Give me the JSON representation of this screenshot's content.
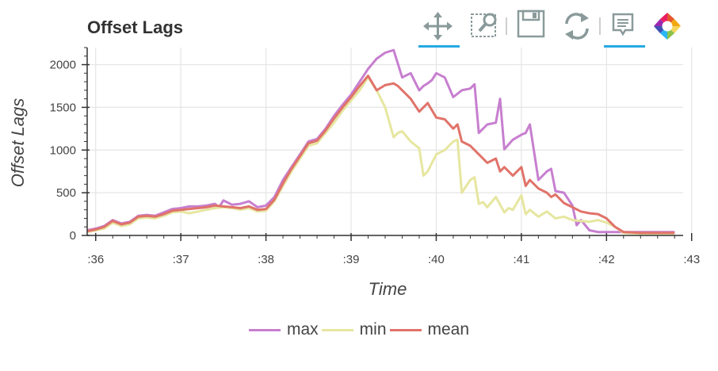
{
  "toolbar": {
    "tools": [
      {
        "name": "pan-tool",
        "icon": "move-icon",
        "active": true
      },
      {
        "name": "box-zoom-tool",
        "icon": "box-zoom-icon",
        "active": false
      },
      {
        "name": "save-tool",
        "icon": "save-icon",
        "active": false
      },
      {
        "name": "reset-tool",
        "icon": "reset-icon",
        "active": false
      },
      {
        "name": "hover-tool",
        "icon": "hover-tooltip-icon",
        "active": true
      },
      {
        "name": "bokeh-logo",
        "icon": "bokeh-logo-icon",
        "active": false
      }
    ],
    "active_color": "#26aae1"
  },
  "chart_data": {
    "type": "line",
    "title": "Offset Lags",
    "xlabel": "Time",
    "ylabel": "Offset Lags",
    "xlim": [
      35.9,
      42.9
    ],
    "ylim": [
      0,
      2200
    ],
    "x_ticks": [
      36,
      37,
      38,
      39,
      40,
      41,
      42,
      43
    ],
    "x_tick_labels": [
      ":36",
      ":37",
      ":38",
      ":39",
      ":40",
      ":41",
      ":42",
      ":43"
    ],
    "y_ticks": [
      0,
      500,
      1000,
      1500,
      2000
    ],
    "y_tick_labels": [
      "0",
      "500",
      "1000",
      "1500",
      "2000"
    ],
    "grid": true,
    "legend_position": "bottom",
    "series": [
      {
        "name": "max",
        "color": "#c77fcf",
        "x": [
          35.9,
          36.0,
          36.1,
          36.2,
          36.3,
          36.4,
          36.5,
          36.6,
          36.7,
          36.8,
          36.9,
          37.0,
          37.1,
          37.2,
          37.3,
          37.4,
          37.45,
          37.5,
          37.6,
          37.7,
          37.8,
          37.9,
          38.0,
          38.1,
          38.2,
          38.3,
          38.4,
          38.5,
          38.6,
          38.7,
          38.8,
          38.9,
          39.0,
          39.1,
          39.2,
          39.3,
          39.4,
          39.5,
          39.6,
          39.7,
          39.8,
          39.85,
          39.9,
          39.95,
          40.0,
          40.1,
          40.2,
          40.3,
          40.4,
          40.45,
          40.5,
          40.6,
          40.7,
          40.75,
          40.8,
          40.9,
          41.0,
          41.05,
          41.1,
          41.2,
          41.3,
          41.35,
          41.4,
          41.5,
          41.6,
          41.65,
          41.7,
          41.8,
          41.9,
          42.0,
          42.1,
          42.2,
          42.4,
          42.6,
          42.8
        ],
        "values": [
          60,
          80,
          110,
          180,
          140,
          160,
          230,
          240,
          230,
          270,
          310,
          320,
          340,
          340,
          350,
          370,
          330,
          410,
          360,
          370,
          400,
          330,
          350,
          450,
          650,
          800,
          950,
          1100,
          1130,
          1250,
          1400,
          1530,
          1650,
          1800,
          1950,
          2070,
          2140,
          2170,
          1850,
          1900,
          1700,
          1750,
          1780,
          1820,
          1900,
          1850,
          1620,
          1700,
          1720,
          1770,
          1200,
          1300,
          1320,
          1600,
          1010,
          1120,
          1180,
          1200,
          1300,
          650,
          750,
          780,
          520,
          500,
          350,
          120,
          180,
          60,
          40,
          40,
          40,
          40,
          40,
          40,
          40
        ]
      },
      {
        "name": "min",
        "color": "#e6e6a0",
        "x": [
          35.9,
          36.0,
          36.1,
          36.2,
          36.3,
          36.4,
          36.5,
          36.6,
          36.7,
          36.8,
          36.9,
          37.0,
          37.1,
          37.2,
          37.3,
          37.4,
          37.5,
          37.6,
          37.7,
          37.8,
          37.9,
          38.0,
          38.1,
          38.2,
          38.3,
          38.4,
          38.5,
          38.6,
          38.7,
          38.8,
          38.9,
          39.0,
          39.1,
          39.2,
          39.3,
          39.4,
          39.5,
          39.55,
          39.6,
          39.7,
          39.8,
          39.85,
          39.9,
          40.0,
          40.1,
          40.2,
          40.25,
          40.3,
          40.4,
          40.45,
          40.5,
          40.55,
          40.6,
          40.7,
          40.8,
          40.85,
          40.9,
          41.0,
          41.05,
          41.1,
          41.2,
          41.3,
          41.4,
          41.5,
          41.6,
          41.7,
          41.8,
          41.9,
          42.0,
          42.1,
          42.2,
          42.4,
          42.6,
          42.8
        ],
        "values": [
          40,
          60,
          80,
          150,
          110,
          130,
          200,
          210,
          200,
          230,
          270,
          280,
          260,
          280,
          300,
          320,
          330,
          320,
          300,
          320,
          280,
          290,
          400,
          580,
          750,
          900,
          1050,
          1080,
          1200,
          1320,
          1460,
          1580,
          1700,
          1850,
          1700,
          1500,
          1150,
          1200,
          1220,
          1100,
          1020,
          700,
          750,
          950,
          1000,
          1100,
          1120,
          500,
          650,
          680,
          370,
          390,
          330,
          450,
          270,
          320,
          300,
          470,
          250,
          300,
          220,
          280,
          200,
          220,
          180,
          170,
          160,
          180,
          150,
          100,
          30,
          20,
          20,
          20
        ]
      },
      {
        "name": "mean",
        "color": "#e0736a",
        "x": [
          35.9,
          36.0,
          36.1,
          36.2,
          36.3,
          36.4,
          36.5,
          36.6,
          36.7,
          36.8,
          36.9,
          37.0,
          37.1,
          37.2,
          37.3,
          37.4,
          37.5,
          37.6,
          37.7,
          37.8,
          37.9,
          38.0,
          38.1,
          38.2,
          38.3,
          38.4,
          38.5,
          38.6,
          38.7,
          38.8,
          38.9,
          39.0,
          39.1,
          39.2,
          39.3,
          39.4,
          39.5,
          39.55,
          39.6,
          39.7,
          39.8,
          39.9,
          40.0,
          40.1,
          40.2,
          40.25,
          40.3,
          40.4,
          40.45,
          40.5,
          40.6,
          40.7,
          40.75,
          40.8,
          40.9,
          41.0,
          41.05,
          41.1,
          41.2,
          41.3,
          41.35,
          41.4,
          41.5,
          41.6,
          41.7,
          41.8,
          41.9,
          42.0,
          42.1,
          42.2,
          42.4,
          42.6,
          42.8
        ],
        "values": [
          50,
          70,
          100,
          170,
          130,
          150,
          220,
          230,
          220,
          250,
          290,
          300,
          310,
          320,
          330,
          350,
          340,
          330,
          320,
          340,
          300,
          310,
          420,
          610,
          780,
          930,
          1080,
          1110,
          1230,
          1370,
          1500,
          1620,
          1750,
          1870,
          1700,
          1760,
          1780,
          1750,
          1700,
          1600,
          1450,
          1550,
          1380,
          1360,
          1250,
          1300,
          1100,
          1050,
          1000,
          950,
          850,
          900,
          750,
          800,
          700,
          800,
          580,
          650,
          550,
          500,
          450,
          480,
          380,
          330,
          280,
          260,
          250,
          200,
          100,
          40,
          30,
          30,
          30
        ]
      }
    ]
  }
}
